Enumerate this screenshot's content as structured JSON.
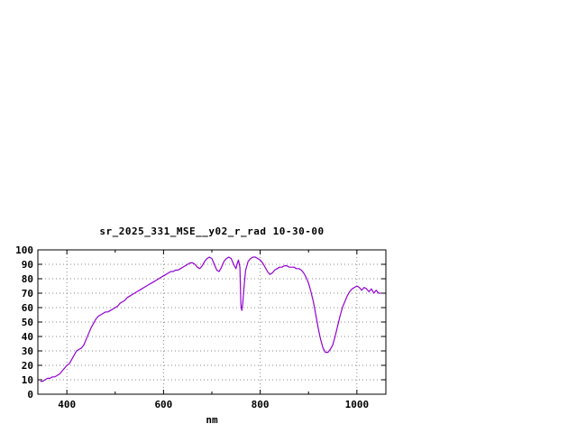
{
  "window": {
    "background": "#ffffff"
  },
  "chart_data": {
    "type": "line",
    "title": "sr_2025_331_MSE__y02_r_rad 10-30-00",
    "xlabel": "nm",
    "ylabel": "",
    "xlim": [
      340,
      1060
    ],
    "ylim": [
      0,
      100
    ],
    "x_major_ticks": [
      400,
      600,
      800,
      1000
    ],
    "x_minor_ticks": [
      500,
      700,
      900
    ],
    "y_ticks": [
      0,
      10,
      20,
      30,
      40,
      50,
      60,
      70,
      80,
      90,
      100
    ],
    "grid": true,
    "legend": "none",
    "line_color": "#9400d3",
    "axis_color": "#000000",
    "grid_color": "#888888",
    "series": [
      {
        "name": "sr_2025_331_MSE__y02_r_rad",
        "x": [
          345,
          350,
          355,
          360,
          365,
          370,
          375,
          380,
          385,
          390,
          395,
          400,
          405,
          410,
          415,
          420,
          425,
          430,
          435,
          440,
          445,
          450,
          455,
          460,
          465,
          470,
          475,
          480,
          485,
          490,
          495,
          500,
          505,
          510,
          515,
          520,
          525,
          530,
          535,
          540,
          545,
          550,
          555,
          560,
          565,
          570,
          575,
          580,
          585,
          590,
          595,
          600,
          605,
          610,
          615,
          620,
          625,
          630,
          635,
          640,
          645,
          650,
          655,
          660,
          665,
          670,
          675,
          680,
          685,
          690,
          695,
          700,
          705,
          710,
          715,
          720,
          725,
          730,
          735,
          740,
          745,
          750,
          752,
          755,
          758,
          760,
          762,
          764,
          766,
          768,
          770,
          775,
          780,
          785,
          790,
          795,
          800,
          805,
          810,
          815,
          820,
          825,
          830,
          835,
          840,
          845,
          850,
          855,
          860,
          865,
          870,
          875,
          880,
          885,
          890,
          895,
          900,
          905,
          910,
          915,
          920,
          925,
          930,
          935,
          940,
          945,
          950,
          955,
          960,
          965,
          970,
          975,
          980,
          985,
          990,
          995,
          1000,
          1005,
          1010,
          1015,
          1020,
          1025,
          1030,
          1035,
          1040,
          1045,
          1050
        ],
        "y": [
          9,
          9,
          10,
          11,
          11,
          12,
          12,
          13,
          14,
          16,
          18,
          20,
          21,
          24,
          27,
          30,
          31,
          32,
          34,
          38,
          42,
          46,
          49,
          52,
          54,
          55,
          56,
          57,
          57,
          58,
          59,
          60,
          61,
          63,
          64,
          65,
          67,
          68,
          69,
          70,
          71,
          72,
          73,
          74,
          75,
          76,
          77,
          78,
          79,
          80,
          81,
          82,
          83,
          84,
          85,
          85,
          86,
          86,
          87,
          88,
          89,
          90,
          91,
          91,
          90,
          88,
          87,
          89,
          92,
          94,
          95,
          94,
          90,
          86,
          85,
          88,
          92,
          94,
          95,
          94,
          90,
          87,
          90,
          93,
          88,
          62,
          58,
          63,
          72,
          80,
          86,
          92,
          94,
          95,
          95,
          94,
          93,
          91,
          88,
          85,
          83,
          84,
          86,
          87,
          88,
          88,
          89,
          89,
          88,
          88,
          88,
          87,
          87,
          86,
          84,
          81,
          77,
          71,
          64,
          55,
          46,
          38,
          32,
          29,
          29,
          31,
          34,
          40,
          47,
          54,
          60,
          64,
          68,
          71,
          73,
          74,
          75,
          74,
          72,
          74,
          73,
          71,
          73,
          70,
          72,
          70,
          70
        ]
      }
    ]
  }
}
